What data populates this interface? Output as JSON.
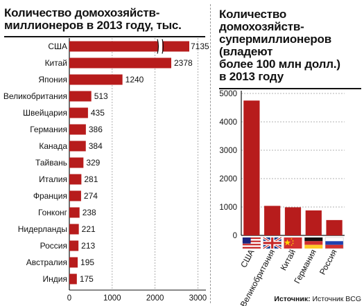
{
  "chart_data": [
    {
      "type": "bar",
      "orientation": "horizontal",
      "title": "Количество домохозяйств-\nмиллионеров в 2013 году, тыс.",
      "categories": [
        "США",
        "Китай",
        "Япония",
        "Великобритания",
        "Швейцария",
        "Германия",
        "Канада",
        "Тайвань",
        "Италия",
        "Франция",
        "Гонконг",
        "Нидерланды",
        "Россия",
        "Австралия",
        "Индия"
      ],
      "values": [
        7135,
        2378,
        1240,
        513,
        435,
        386,
        384,
        329,
        281,
        274,
        238,
        221,
        213,
        195,
        175
      ],
      "xticks": [
        "0",
        "1000",
        "2000",
        "3000"
      ],
      "xlim": [
        0,
        3000
      ],
      "axis_break": true,
      "bar_color": "#b71c1c",
      "grid": true
    },
    {
      "type": "bar",
      "orientation": "vertical",
      "title": "Количество\nдомохозяйств-\nсупермиллионеров\n(владеют\nболее 100 млн долл.)\nв 2013 году",
      "categories": [
        "США",
        "Великобритания",
        "Китай",
        "Германия",
        "Россия"
      ],
      "values": [
        4750,
        1040,
        990,
        880,
        540
      ],
      "yticks": [
        "0",
        "1000",
        "2000",
        "3000",
        "4000",
        "5000"
      ],
      "ylim": [
        0,
        5000
      ],
      "flags": [
        "us-flag-icon",
        "uk-flag-icon",
        "china-flag-icon",
        "germany-flag-icon",
        "russia-flag-icon"
      ],
      "bar_color": "#b71c1c",
      "grid": true
    }
  ],
  "source": {
    "label": "Источник:",
    "text": "Источник BCG"
  }
}
